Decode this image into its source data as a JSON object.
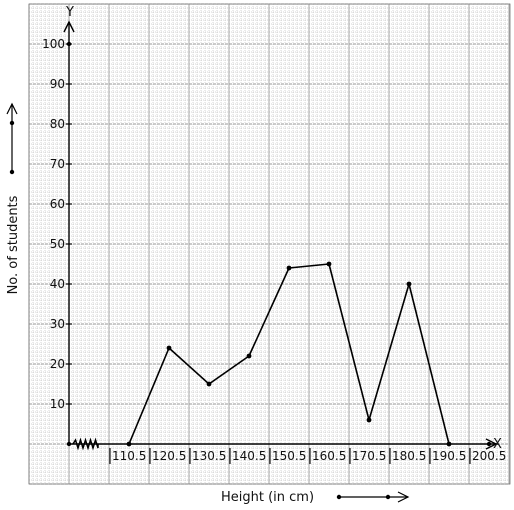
{
  "chart_data": {
    "type": "line",
    "title": "",
    "xlabel": "Height (in cm)",
    "ylabel": "No. of students",
    "x_axis_letter": "X",
    "y_axis_letter": "Y",
    "x_tick_labels": [
      "110.5",
      "120.5",
      "130.5",
      "140.5",
      "150.5",
      "160.5",
      "170.5",
      "180.5",
      "190.5",
      "200.5"
    ],
    "y_tick_labels": [
      "10",
      "20",
      "30",
      "40",
      "50",
      "60",
      "70",
      "80",
      "90",
      "100"
    ],
    "ylim": [
      0,
      100
    ],
    "grid": true,
    "axis_break": true,
    "series": [
      {
        "x": [
          115.5,
          125.5,
          135.5,
          145.5,
          155.5,
          165.5,
          175.5,
          185.5,
          195.5
        ],
        "y": [
          0,
          24,
          15,
          22,
          44,
          45,
          6,
          40,
          0
        ]
      }
    ]
  }
}
